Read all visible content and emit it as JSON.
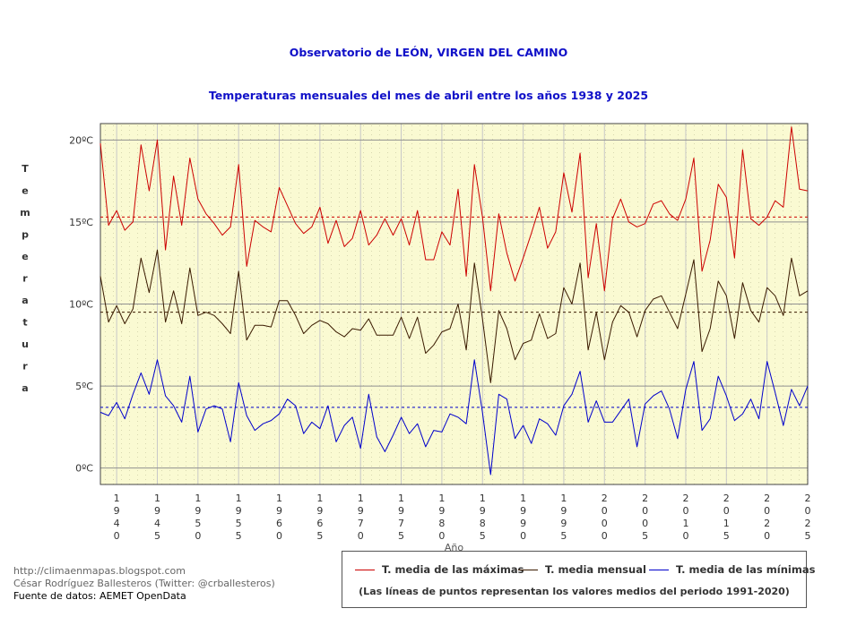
{
  "chart_data": {
    "type": "line",
    "title": "Observatorio de LEÓN, VIRGEN DEL CAMINO",
    "subtitle": "Temperaturas mensuales del mes de abril entre los años 1938 y 2025",
    "xlabel": "Año",
    "ylabel": "Temperatura",
    "ylim": [
      -1,
      21
    ],
    "xlim": [
      1938,
      2025
    ],
    "y_ticks": [
      {
        "value": 0,
        "label": "0ºC"
      },
      {
        "value": 5,
        "label": "5ºC"
      },
      {
        "value": 10,
        "label": "10ºC"
      },
      {
        "value": 15,
        "label": "15ºC"
      },
      {
        "value": 20,
        "label": "20ºC"
      }
    ],
    "x_ticks": [
      1940,
      1945,
      1950,
      1955,
      1960,
      1965,
      1970,
      1975,
      1980,
      1985,
      1990,
      1995,
      2000,
      2005,
      2010,
      2015,
      2020,
      2025
    ],
    "x": [
      1938,
      1939,
      1940,
      1941,
      1942,
      1943,
      1944,
      1945,
      1946,
      1947,
      1948,
      1949,
      1950,
      1951,
      1952,
      1953,
      1954,
      1955,
      1956,
      1957,
      1958,
      1959,
      1960,
      1961,
      1962,
      1963,
      1964,
      1965,
      1966,
      1967,
      1968,
      1969,
      1970,
      1971,
      1972,
      1973,
      1974,
      1975,
      1976,
      1977,
      1978,
      1979,
      1980,
      1981,
      1982,
      1983,
      1984,
      1985,
      1986,
      1987,
      1988,
      1989,
      1990,
      1991,
      1992,
      1993,
      1994,
      1995,
      1996,
      1997,
      1998,
      1999,
      2000,
      2001,
      2002,
      2003,
      2004,
      2005,
      2006,
      2007,
      2008,
      2009,
      2010,
      2011,
      2012,
      2013,
      2014,
      2015,
      2016,
      2017,
      2018,
      2019,
      2020,
      2021,
      2022,
      2023,
      2024,
      2025
    ],
    "series": [
      {
        "name": "T. media de las máximas",
        "color": "#cc0000",
        "reference_mean": 15.3,
        "values": [
          19.8,
          14.8,
          15.7,
          14.5,
          15.0,
          19.7,
          16.9,
          20.0,
          13.3,
          17.8,
          14.8,
          18.9,
          16.4,
          15.5,
          14.9,
          14.2,
          14.7,
          18.5,
          12.3,
          15.1,
          14.7,
          14.4,
          17.1,
          16.0,
          14.9,
          14.3,
          14.7,
          15.9,
          13.7,
          15.1,
          13.5,
          14.0,
          15.7,
          13.6,
          14.2,
          15.2,
          14.2,
          15.2,
          13.6,
          15.7,
          12.7,
          12.7,
          14.4,
          13.6,
          17.0,
          11.7,
          18.5,
          15.3,
          10.8,
          15.5,
          13.1,
          11.4,
          12.8,
          14.3,
          15.9,
          13.4,
          14.4,
          18.0,
          15.6,
          19.2,
          11.6,
          14.9,
          10.8,
          15.2,
          16.4,
          15.0,
          14.7,
          14.9,
          16.1,
          16.3,
          15.5,
          15.1,
          16.4,
          18.9,
          12.0,
          13.9,
          17.3,
          16.5,
          12.8,
          19.4,
          15.2,
          14.8,
          15.3,
          16.3,
          15.9,
          20.8,
          17.0,
          16.9
        ]
      },
      {
        "name": "T. media mensual",
        "color": "#3a1a00",
        "reference_mean": 9.5,
        "values": [
          11.7,
          8.9,
          9.9,
          8.8,
          9.7,
          12.8,
          10.7,
          13.3,
          8.9,
          10.8,
          8.8,
          12.2,
          9.3,
          9.5,
          9.3,
          8.8,
          8.2,
          12.0,
          7.8,
          8.7,
          8.7,
          8.6,
          10.2,
          10.2,
          9.3,
          8.2,
          8.7,
          9.0,
          8.8,
          8.3,
          8.0,
          8.5,
          8.4,
          9.1,
          8.1,
          8.1,
          8.1,
          9.2,
          7.9,
          9.2,
          7.0,
          7.5,
          8.3,
          8.5,
          10.0,
          7.2,
          12.5,
          9.1,
          5.2,
          9.6,
          8.5,
          6.6,
          7.6,
          7.8,
          9.4,
          7.9,
          8.2,
          11.0,
          10.0,
          12.5,
          7.2,
          9.5,
          6.6,
          8.9,
          9.9,
          9.5,
          8.0,
          9.6,
          10.3,
          10.5,
          9.5,
          8.5,
          10.6,
          12.7,
          7.1,
          8.5,
          11.4,
          10.5,
          7.9,
          11.3,
          9.6,
          8.9,
          11.0,
          10.5,
          9.3,
          12.8,
          10.5,
          10.8
        ]
      },
      {
        "name": "T. media de las mínimas",
        "color": "#0000cc",
        "reference_mean": 3.7,
        "values": [
          3.4,
          3.2,
          4.0,
          3.0,
          4.5,
          5.8,
          4.5,
          6.6,
          4.4,
          3.8,
          2.8,
          5.6,
          2.2,
          3.6,
          3.8,
          3.6,
          1.6,
          5.2,
          3.2,
          2.3,
          2.7,
          2.9,
          3.3,
          4.2,
          3.8,
          2.1,
          2.8,
          2.4,
          3.8,
          1.6,
          2.6,
          3.1,
          1.2,
          4.5,
          1.9,
          1.0,
          2.0,
          3.1,
          2.1,
          2.7,
          1.3,
          2.3,
          2.2,
          3.3,
          3.1,
          2.7,
          6.6,
          3.4,
          -0.4,
          4.5,
          4.2,
          1.8,
          2.6,
          1.5,
          3.0,
          2.7,
          2.0,
          3.8,
          4.5,
          5.9,
          2.8,
          4.1,
          2.8,
          2.8,
          3.5,
          4.2,
          1.3,
          3.9,
          4.4,
          4.7,
          3.6,
          1.8,
          4.8,
          6.5,
          2.3,
          3.0,
          5.6,
          4.4,
          2.9,
          3.3,
          4.2,
          3.0,
          6.5,
          4.6,
          2.6,
          4.8,
          3.8,
          5.0
        ]
      }
    ],
    "grid": true,
    "legend_note": "(Las líneas de puntos representan los valores medios del periodo 1991-2020)"
  },
  "credits": {
    "blog": "http://climaenmapas.blogspot.com",
    "author": "César Rodríguez Ballesteros (Twitter: @crballesteros)",
    "source": "Fuente de datos: AEMET OpenData"
  }
}
